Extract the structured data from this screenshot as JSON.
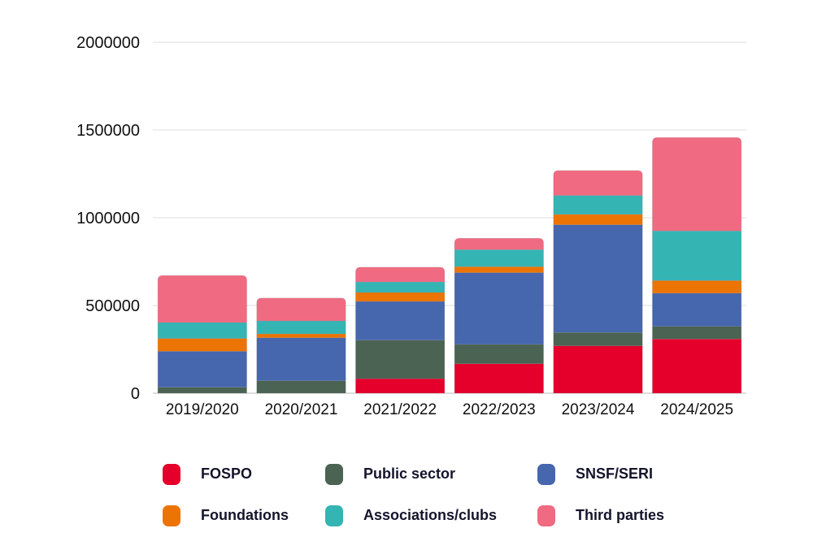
{
  "chart_data": {
    "type": "bar",
    "stacked": true,
    "categories": [
      "2019/2020",
      "2020/2021",
      "2021/2022",
      "2022/2023",
      "2023/2024",
      "2024/2025"
    ],
    "ylim": [
      0,
      2000000
    ],
    "yticks": [
      "0",
      "500000",
      "1000000",
      "1500000",
      "2000000"
    ],
    "ytick_values": [
      0,
      500000,
      1000000,
      1500000,
      2000000
    ],
    "grid": true,
    "legend_placement": "bottom",
    "series": [
      {
        "name": "FOSPO",
        "color": "#e4002b",
        "values": [
          0,
          0,
          83000,
          168000,
          270000,
          309000
        ]
      },
      {
        "name": "Public sector",
        "color": "#4a6352",
        "values": [
          34000,
          71000,
          219000,
          110000,
          76000,
          72000
        ]
      },
      {
        "name": "SNSF/SERI",
        "color": "#4666ae",
        "values": [
          205000,
          245000,
          221000,
          409000,
          614000,
          189000
        ]
      },
      {
        "name": "Foundations",
        "color": "#ec7404",
        "values": [
          73000,
          22000,
          51000,
          34000,
          59000,
          72000
        ]
      },
      {
        "name": "Associations/clubs",
        "color": "#35b4b4",
        "values": [
          91000,
          74000,
          60000,
          97000,
          108000,
          283000
        ]
      },
      {
        "name": "Third parties",
        "color": "#f06a82",
        "values": [
          268000,
          130000,
          84000,
          65000,
          142000,
          532000
        ]
      }
    ]
  }
}
